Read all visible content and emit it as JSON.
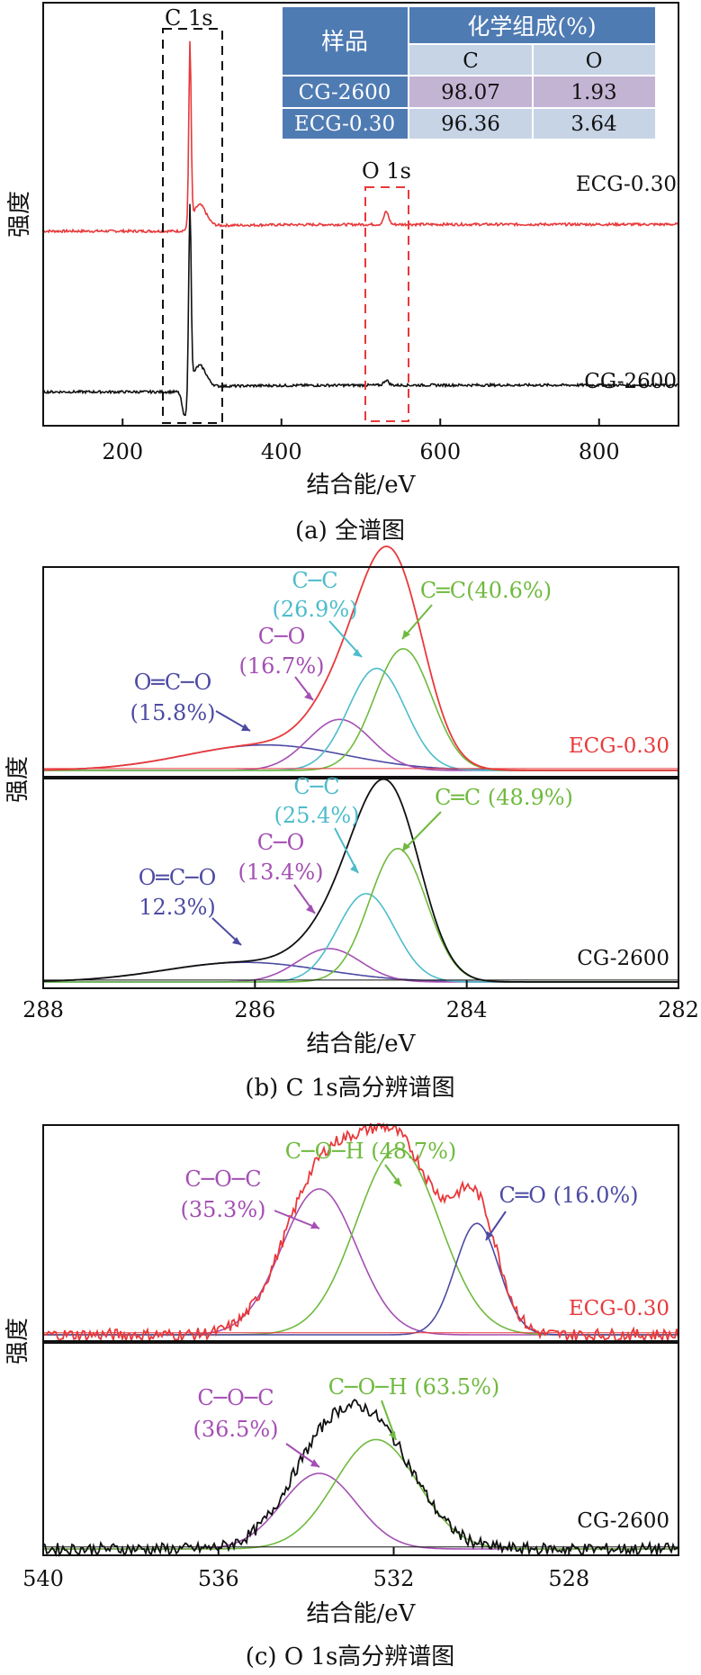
{
  "colors": {
    "red": "#e8393b",
    "black": "#111111",
    "cyan": "#4dbccb",
    "green": "#6fba3e",
    "purple": "#a44fb3",
    "navy": "#4c4aa3",
    "table_header": "#4f7bb3",
    "table_sub": "#c6d4e6",
    "table_c_row": "#c4b4d4",
    "table_e_row": "#c6d4e6"
  },
  "chart_data": [
    {
      "id": "a",
      "type": "line",
      "caption": "(a) 全谱图",
      "xlabel": "结合能/eV",
      "ylabel": "强度",
      "xlim": [
        100,
        900
      ],
      "xticks": [
        200,
        400,
        600,
        800
      ],
      "series": [
        {
          "name": "ECG-0.30",
          "color": "red",
          "baseline": 0.46,
          "peaks": [
            {
              "x": 284.8,
              "height": 0.42,
              "width": 1.5
            },
            {
              "x": 297,
              "height": 0.05,
              "width": 8
            },
            {
              "x": 532,
              "height": 0.03,
              "width": 3
            }
          ]
        },
        {
          "name": "CG-2600",
          "color": "black",
          "baseline": 0.08,
          "peaks": [
            {
              "x": 284.8,
              "height": 0.42,
              "width": 1.5
            },
            {
              "x": 297,
              "height": 0.05,
              "width": 8
            },
            {
              "x": 532,
              "height": 0.012,
              "width": 3
            }
          ]
        }
      ],
      "annotations": [
        "C 1s",
        "O 1s"
      ],
      "table": {
        "header_sample": "样品",
        "header_comp": "化学组成(%)",
        "col_c": "C",
        "col_o": "O",
        "rows": [
          {
            "sample": "CG-2600",
            "c": "98.07",
            "o": "1.93"
          },
          {
            "sample": "ECG-0.30",
            "c": "96.36",
            "o": "3.64"
          }
        ]
      }
    },
    {
      "id": "b",
      "type": "line",
      "caption": "(b) C 1s高分辨谱图",
      "xlabel": "结合能/eV",
      "ylabel": "强度",
      "xlim": [
        288,
        282
      ],
      "xticks": [
        288,
        286,
        284,
        282
      ],
      "panels": [
        {
          "name": "ECG-0.30",
          "components": [
            {
              "label_top": "O═C─O",
              "label_pct": "(15.8%)",
              "center": 285.9,
              "height": 0.13,
              "width": 0.75,
              "color": "navy"
            },
            {
              "label_top": "C─O",
              "label_pct": "(16.7%)",
              "center": 285.2,
              "height": 0.26,
              "width": 0.3,
              "color": "purple"
            },
            {
              "label_top": "C─C",
              "label_pct": "(26.9%)",
              "center": 284.85,
              "height": 0.52,
              "width": 0.27,
              "color": "cyan"
            },
            {
              "label_top": "C═C(40.6%)",
              "label_pct": "",
              "center": 284.6,
              "height": 0.62,
              "width": 0.27,
              "color": "green"
            }
          ]
        },
        {
          "name": "CG-2600",
          "components": [
            {
              "label_top": "O═C─O",
              "label_pct": "12.3%)",
              "center": 286.1,
              "height": 0.1,
              "width": 0.75,
              "color": "navy"
            },
            {
              "label_top": "C─O",
              "label_pct": "(13.4%)",
              "center": 285.3,
              "height": 0.17,
              "width": 0.3,
              "color": "purple"
            },
            {
              "label_top": "C─C",
              "label_pct": "(25.4%)",
              "center": 284.95,
              "height": 0.45,
              "width": 0.27,
              "color": "cyan"
            },
            {
              "label_top": "C═C (48.9%)",
              "label_pct": "",
              "center": 284.65,
              "height": 0.68,
              "width": 0.27,
              "color": "green"
            }
          ]
        }
      ]
    },
    {
      "id": "c",
      "type": "line",
      "caption": "(c) O 1s高分辨谱图",
      "xlabel": "结合能/eV",
      "ylabel": "强度",
      "xlim": [
        540,
        525.5
      ],
      "xticks": [
        540,
        536,
        532,
        528
      ],
      "panels": [
        {
          "name": "ECG-0.30",
          "components": [
            {
              "label_top": "C─O─C",
              "label_pct": "(35.3%)",
              "center": 533.7,
              "height": 0.72,
              "width": 0.85,
              "color": "purple"
            },
            {
              "label_top": "C─O─H (48.7%)",
              "label_pct": "",
              "center": 531.9,
              "height": 0.92,
              "width": 0.95,
              "color": "green"
            },
            {
              "label_top": "C═O (16.0%)",
              "label_pct": "",
              "center": 530.1,
              "height": 0.55,
              "width": 0.5,
              "color": "navy"
            }
          ]
        },
        {
          "name": "CG-2600",
          "components": [
            {
              "label_top": "C─O─C",
              "label_pct": "(36.5%)",
              "center": 533.7,
              "height": 0.38,
              "width": 0.85,
              "color": "purple"
            },
            {
              "label_top": "C─O─H (63.5%)",
              "label_pct": "",
              "center": 532.4,
              "height": 0.55,
              "width": 0.95,
              "color": "green"
            }
          ]
        }
      ]
    }
  ]
}
